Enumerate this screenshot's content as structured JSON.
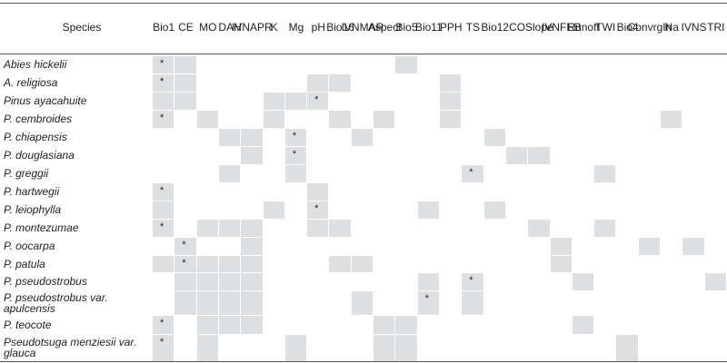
{
  "table": {
    "columns": [
      "Species",
      "Bio1",
      "CE",
      "MO",
      "DAH",
      "IVNAPR",
      "K",
      "Mg",
      "pH",
      "Bio16",
      "IVNMAR",
      "Aspect",
      "Bio5",
      "Bio11",
      "PPH",
      "TS",
      "Bio12",
      "CO",
      "Slope",
      "IVNFEB",
      "Runoff",
      "TWI",
      "Bio4",
      "ConvrgIn",
      "Na",
      "IVNS",
      "TRI"
    ],
    "rows": [
      {
        "species": "Abies hickelii",
        "shaded": [
          "Bio1",
          "CE",
          "Bio5"
        ],
        "mark": {
          "column": "Bio1",
          "text": "*"
        }
      },
      {
        "species": "A. religiosa",
        "shaded": [
          "Bio1",
          "CE",
          "pH",
          "Bio16",
          "PPH"
        ],
        "mark": {
          "column": "Bio1",
          "text": "*"
        }
      },
      {
        "species": "Pinus ayacahuite",
        "shaded": [
          "Bio1",
          "CE",
          "K",
          "Mg",
          "pH",
          "PPH"
        ],
        "mark": {
          "column": "pH",
          "text": "*"
        }
      },
      {
        "species": "P. cembroides",
        "shaded": [
          "Bio1",
          "MO",
          "K",
          "Bio16",
          "Aspect",
          "PPH",
          "Na"
        ],
        "mark": {
          "column": "Bio1",
          "text": "*"
        }
      },
      {
        "species": "P. chiapensis",
        "shaded": [
          "DAH",
          "IVNAPR",
          "Mg",
          "IVNMAR",
          "Bio12"
        ],
        "mark": {
          "column": "Mg",
          "text": "*"
        }
      },
      {
        "species": "P. douglasiana",
        "shaded": [
          "IVNAPR",
          "Mg",
          "CO",
          "Slope"
        ],
        "mark": {
          "column": "Mg",
          "text": "*"
        }
      },
      {
        "species": "P. greggii",
        "shaded": [
          "DAH",
          "Mg",
          "TS",
          "TWI"
        ],
        "mark": {
          "column": "TS",
          "text": "*"
        }
      },
      {
        "species": "P. hartwegii",
        "shaded": [
          "Bio1",
          "pH"
        ],
        "mark": {
          "column": "Bio1",
          "text": "*"
        }
      },
      {
        "species": "P. leiophylla",
        "shaded": [
          "Bio1",
          "K",
          "pH",
          "Bio11",
          "Bio12"
        ],
        "mark": {
          "column": "pH",
          "text": "*"
        }
      },
      {
        "species": "P. montezumae",
        "shaded": [
          "Bio1",
          "MO",
          "DAH",
          "IVNAPR",
          "pH",
          "Bio16",
          "Slope",
          "TWI"
        ],
        "mark": {
          "column": "Bio1",
          "text": "*"
        }
      },
      {
        "species": "P. oocarpa",
        "shaded": [
          "CE",
          "IVNAPR",
          "IVNFEB",
          "ConvrgIn",
          "IVNS"
        ],
        "mark": {
          "column": "CE",
          "text": "*"
        }
      },
      {
        "species": "P. patula",
        "shaded": [
          "Bio1",
          "CE",
          "MO",
          "DAH",
          "IVNAPR",
          "Bio16",
          "IVNMAR",
          "IVNFEB"
        ],
        "mark": {
          "column": "CE",
          "text": "*"
        }
      },
      {
        "species": "P. pseudostrobus",
        "shaded": [
          "CE",
          "MO",
          "DAH",
          "IVNAPR",
          "Bio11",
          "TS",
          "Runoff",
          "TRI"
        ],
        "mark": {
          "column": "TS",
          "text": "*"
        }
      },
      {
        "species": "P. pseudostrobus var. apulcensis",
        "shaded": [
          "CE",
          "MO",
          "DAH",
          "IVNAPR",
          "IVNMAR",
          "Bio11",
          "TS"
        ],
        "mark": {
          "column": "Bio11",
          "text": "*"
        }
      },
      {
        "species": "P. teocote",
        "shaded": [
          "Bio1",
          "MO",
          "DAH",
          "IVNAPR",
          "Aspect",
          "Bio5",
          "Runoff"
        ],
        "mark": {
          "column": "Bio1",
          "text": "*"
        }
      },
      {
        "species": "Pseudotsuga menziesii var. glauca",
        "shaded": [
          "Bio1",
          "MO",
          "Mg",
          "Aspect",
          "Bio5",
          "Bio4"
        ],
        "mark": {
          "column": "Bio1",
          "text": "*"
        }
      }
    ]
  }
}
